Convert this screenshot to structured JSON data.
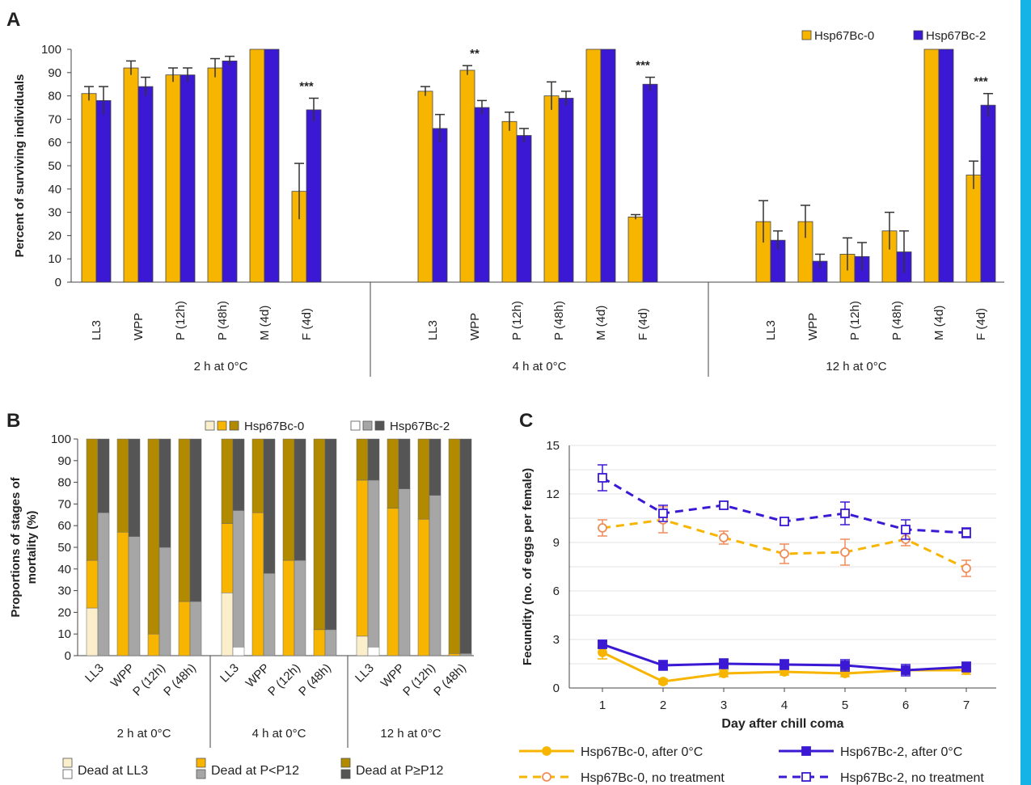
{
  "figure": {
    "edge_color": "#16b4e6"
  },
  "colors": {
    "hsp0": "#f7b500",
    "hsp2": "#3a18d4",
    "hsp0_light": "#fbeecb",
    "hsp0_dark": "#b28a00",
    "hsp2_light": "#ffffff",
    "hsp2_mid": "#a6a6a6",
    "hsp2_dark": "#555555",
    "line0": "#f7b500",
    "line2": "#3a18d4",
    "marker0_open": "#f08c5a"
  },
  "chart_data": [
    {
      "panel": "A",
      "type": "bar",
      "ylabel": "Percent of surviving individuals",
      "ylim": [
        0,
        100
      ],
      "yticks": [
        0,
        10,
        20,
        30,
        40,
        50,
        60,
        70,
        80,
        90,
        100
      ],
      "legend": [
        "Hsp67Bc-0",
        "Hsp67Bc-2"
      ],
      "legend_position": "top-right",
      "groups": [
        {
          "label": "2 h at 0°C",
          "categories": [
            "LL3",
            "WPP",
            "P (12h)",
            "P (48h)",
            "M (4d)",
            "F (4d)"
          ],
          "series": [
            {
              "name": "Hsp67Bc-0",
              "values": [
                81,
                92,
                89,
                92,
                100,
                39
              ],
              "errors": [
                3,
                3,
                3,
                4,
                0,
                12
              ]
            },
            {
              "name": "Hsp67Bc-2",
              "values": [
                78,
                84,
                89,
                95,
                100,
                74
              ],
              "errors": [
                6,
                4,
                3,
                2,
                0,
                5
              ]
            }
          ],
          "significance": [
            "",
            "",
            "",
            "",
            "",
            "***"
          ]
        },
        {
          "label": "4 h at 0°C",
          "categories": [
            "LL3",
            "WPP",
            "P (12h)",
            "P (48h)",
            "M (4d)",
            "F (4d)"
          ],
          "series": [
            {
              "name": "Hsp67Bc-0",
              "values": [
                82,
                91,
                69,
                80,
                100,
                28
              ],
              "errors": [
                2,
                2,
                4,
                6,
                0,
                1
              ]
            },
            {
              "name": "Hsp67Bc-2",
              "values": [
                66,
                75,
                63,
                79,
                100,
                85
              ],
              "errors": [
                6,
                3,
                3,
                3,
                0,
                3
              ]
            }
          ],
          "significance": [
            "",
            "**",
            "",
            "",
            "",
            "***"
          ]
        },
        {
          "label": "12 h at 0°C",
          "categories": [
            "LL3",
            "WPP",
            "P (12h)",
            "P (48h)",
            "M (4d)",
            "F (4d)"
          ],
          "series": [
            {
              "name": "Hsp67Bc-0",
              "values": [
                26,
                26,
                12,
                22,
                100,
                46
              ],
              "errors": [
                9,
                7,
                7,
                8,
                0,
                6
              ]
            },
            {
              "name": "Hsp67Bc-2",
              "values": [
                18,
                9,
                11,
                13,
                100,
                76
              ],
              "errors": [
                4,
                3,
                6,
                9,
                0,
                5
              ]
            }
          ],
          "significance": [
            "",
            "",
            "",
            "",
            "",
            "***"
          ]
        }
      ]
    },
    {
      "panel": "B",
      "type": "bar",
      "stacked": true,
      "ylabel": "Proportions of stages of mortality (%)",
      "ylim": [
        0,
        100
      ],
      "yticks": [
        0,
        10,
        20,
        30,
        40,
        50,
        60,
        70,
        80,
        90,
        100
      ],
      "legend_top": [
        "Hsp67Bc-0",
        "Hsp67Bc-2"
      ],
      "legend_bottom": [
        "Dead at LL3",
        "Dead at P<P12",
        "Dead at P≥P12"
      ],
      "stack_labels": [
        "Dead at LL3",
        "Dead at P<P12",
        "Dead at P≥P12"
      ],
      "groups": [
        {
          "label": "2 h at 0°C",
          "categories": [
            "LL3",
            "WPP",
            "P (12h)",
            "P (48h)"
          ],
          "hsp0": [
            [
              22,
              22,
              56
            ],
            [
              0,
              57,
              43
            ],
            [
              0,
              10,
              90
            ],
            [
              0,
              25,
              75
            ]
          ],
          "hsp2": [
            [
              0,
              66,
              34
            ],
            [
              0,
              55,
              45
            ],
            [
              0,
              50,
              50
            ],
            [
              0,
              25,
              75
            ]
          ]
        },
        {
          "label": "4 h at 0°C",
          "categories": [
            "LL3",
            "WPP",
            "P (12h)",
            "P (48h)"
          ],
          "hsp0": [
            [
              29,
              32,
              39
            ],
            [
              0,
              66,
              34
            ],
            [
              0,
              44,
              56
            ],
            [
              0,
              12,
              88
            ]
          ],
          "hsp2": [
            [
              4,
              63,
              33
            ],
            [
              0,
              38,
              62
            ],
            [
              0,
              44,
              56
            ],
            [
              0,
              12,
              88
            ]
          ]
        },
        {
          "label": "12 h at 0°C",
          "categories": [
            "LL3",
            "WPP",
            "P (12h)",
            "P (48h)"
          ],
          "hsp0": [
            [
              9,
              72,
              19
            ],
            [
              0,
              68,
              32
            ],
            [
              0,
              63,
              37
            ],
            [
              0,
              1,
              99
            ]
          ],
          "hsp2": [
            [
              4,
              77,
              19
            ],
            [
              0,
              77,
              23
            ],
            [
              0,
              74,
              26
            ],
            [
              0,
              1,
              99
            ]
          ]
        }
      ]
    },
    {
      "panel": "C",
      "type": "line",
      "xlabel": "Day after chill coma",
      "ylabel": "Fecundity (no. of eggs per female)",
      "x": [
        1,
        2,
        3,
        4,
        5,
        6,
        7
      ],
      "ylim": [
        0,
        15
      ],
      "yticks": [
        0,
        3,
        6,
        9,
        12,
        15
      ],
      "grid": true,
      "series": [
        {
          "name": "Hsp67Bc-0, after 0°C",
          "values": [
            2.2,
            0.4,
            0.9,
            1.0,
            0.9,
            1.1,
            1.1
          ],
          "errors": [
            0.4,
            0.15,
            0.2,
            0.2,
            0.2,
            0.25,
            0.25
          ],
          "style": "solid",
          "marker": "filled-circle"
        },
        {
          "name": "Hsp67Bc-2, after 0°C",
          "values": [
            2.7,
            1.4,
            1.5,
            1.45,
            1.4,
            1.1,
            1.3
          ],
          "errors": [
            0.2,
            0.3,
            0.3,
            0.3,
            0.35,
            0.35,
            0.3
          ],
          "style": "solid",
          "marker": "filled-square"
        },
        {
          "name": "Hsp67Bc-0, no treatment",
          "values": [
            9.9,
            10.4,
            9.3,
            8.3,
            8.4,
            9.2,
            7.4
          ],
          "errors": [
            0.5,
            0.8,
            0.4,
            0.6,
            0.8,
            0.4,
            0.5
          ],
          "style": "dashed",
          "marker": "open-circle"
        },
        {
          "name": "Hsp67Bc-2, no treatment",
          "values": [
            13.0,
            10.8,
            11.3,
            10.3,
            10.8,
            9.8,
            9.6
          ],
          "errors": [
            0.8,
            0.5,
            0.2,
            0.2,
            0.7,
            0.6,
            0.3
          ],
          "style": "dashed",
          "marker": "open-square"
        }
      ]
    }
  ],
  "labels": {
    "panel_a": "A",
    "panel_b": "B",
    "panel_c": "C"
  }
}
